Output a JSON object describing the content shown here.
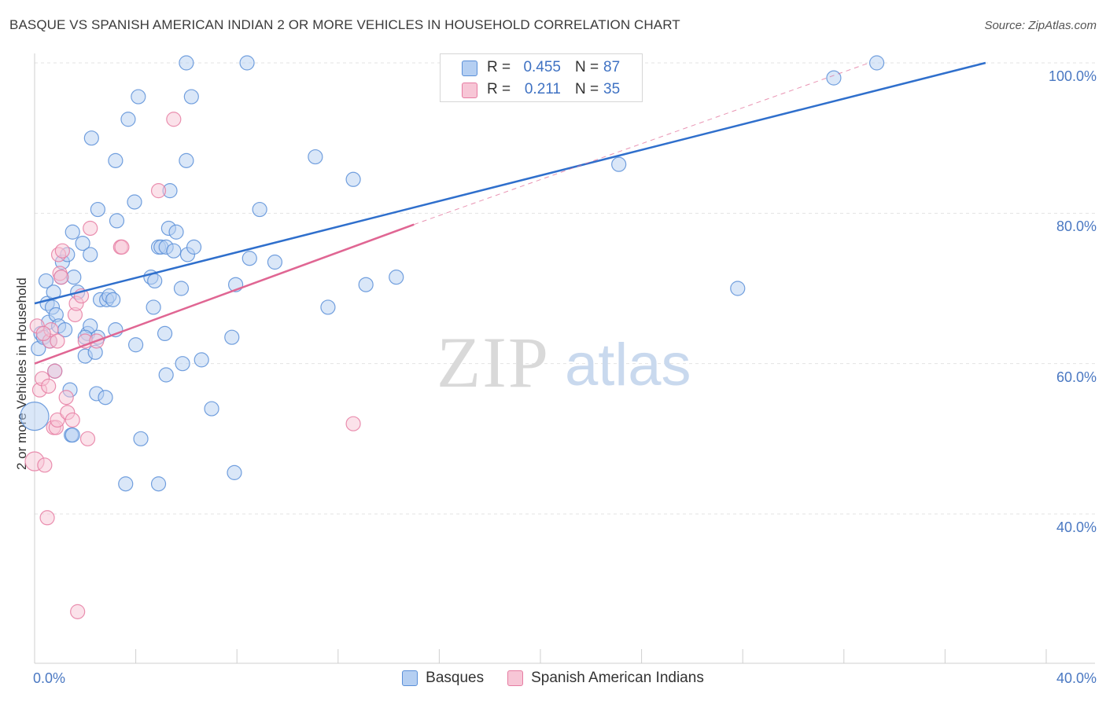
{
  "title": "BASQUE VS SPANISH AMERICAN INDIAN 2 OR MORE VEHICLES IN HOUSEHOLD CORRELATION CHART",
  "source": "Source: ZipAtlas.com",
  "watermark": {
    "zip": "ZIP",
    "atlas": "atlas"
  },
  "stats_legend": [
    {
      "r_label": "R =",
      "r_value": "0.455",
      "n_label": "N =",
      "n_value": "87",
      "color": "#4f86d6",
      "fill": "#aac8f0"
    },
    {
      "r_label": "R =",
      "r_value": "0.211",
      "n_label": "N =",
      "n_value": "35",
      "color": "#e36d97",
      "fill": "#f6bcd0"
    }
  ],
  "colors": {
    "basques_stroke": "#5a8fd8",
    "basques_fill": "#b5cff2",
    "basques_line": "#2f6fcc",
    "spanish_stroke": "#e67ca2",
    "spanish_fill": "#f7c6d6",
    "spanish_line": "#e06693",
    "axis_text": "#4a78c2",
    "grid": "#e3e3e3"
  },
  "chart_data": {
    "type": "scatter",
    "title": "BASQUE VS SPANISH AMERICAN INDIAN 2 OR MORE VEHICLES IN HOUSEHOLD CORRELATION CHART",
    "xlabel": "",
    "ylabel": "2 or more Vehicles in Household",
    "xlim": [
      0,
      40
    ],
    "ylim": [
      20,
      103
    ],
    "x_tick_labels": [
      {
        "value": 0,
        "label": "0.0%"
      },
      {
        "value": 40,
        "label": "40.0%"
      }
    ],
    "y_tick_labels": [
      {
        "value": 100,
        "label": "100.0%"
      },
      {
        "value": 80,
        "label": "80.0%"
      },
      {
        "value": 60,
        "label": "60.0%"
      },
      {
        "value": 40,
        "label": "40.0%"
      }
    ],
    "grid": true,
    "legend_position": "bottom-center",
    "series": [
      {
        "name": "Basques",
        "trend": {
          "x": [
            0,
            37.6
          ],
          "y": [
            68.0,
            100.0
          ]
        },
        "points": [
          [
            0.0,
            53.0,
            18
          ],
          [
            0.15,
            62.0,
            9
          ],
          [
            0.25,
            64.0,
            9
          ],
          [
            0.35,
            63.5,
            9
          ],
          [
            0.45,
            71.0,
            9
          ],
          [
            0.5,
            68.0,
            9
          ],
          [
            0.55,
            65.5,
            9
          ],
          [
            0.7,
            67.5,
            9
          ],
          [
            0.75,
            69.5,
            9
          ],
          [
            0.8,
            59.0,
            9
          ],
          [
            0.85,
            66.5,
            9
          ],
          [
            0.95,
            65.0,
            9
          ],
          [
            1.05,
            71.5,
            9
          ],
          [
            1.1,
            73.5,
            9
          ],
          [
            1.2,
            64.5,
            9
          ],
          [
            1.3,
            74.5,
            9
          ],
          [
            1.4,
            56.5,
            9
          ],
          [
            1.45,
            50.5,
            9
          ],
          [
            1.5,
            77.5,
            9
          ],
          [
            1.55,
            71.5,
            9
          ],
          [
            1.7,
            69.5,
            9
          ],
          [
            1.9,
            76.0,
            9
          ],
          [
            2.0,
            61.0,
            9
          ],
          [
            2.1,
            64.0,
            9
          ],
          [
            2.2,
            65.0,
            9
          ],
          [
            2.2,
            74.5,
            9
          ],
          [
            2.25,
            90.0,
            9
          ],
          [
            2.4,
            61.5,
            9
          ],
          [
            2.45,
            56.0,
            9
          ],
          [
            2.5,
            63.5,
            9
          ],
          [
            2.5,
            80.5,
            9
          ],
          [
            2.6,
            68.5,
            9
          ],
          [
            2.8,
            55.5,
            9
          ],
          [
            2.85,
            68.5,
            9
          ],
          [
            2.95,
            69.0,
            9
          ],
          [
            3.1,
            68.5,
            9
          ],
          [
            3.2,
            87.0,
            9
          ],
          [
            3.2,
            64.5,
            9
          ],
          [
            3.25,
            79.0,
            9
          ],
          [
            3.7,
            92.5,
            9
          ],
          [
            3.95,
            81.5,
            9
          ],
          [
            4.0,
            62.5,
            9
          ],
          [
            4.1,
            95.5,
            9
          ],
          [
            4.2,
            50.0,
            9
          ],
          [
            4.6,
            71.5,
            9
          ],
          [
            4.7,
            67.5,
            9
          ],
          [
            4.75,
            71.0,
            9
          ],
          [
            4.9,
            75.5,
            9
          ],
          [
            5.0,
            75.5,
            9
          ],
          [
            5.15,
            64.0,
            9
          ],
          [
            5.2,
            58.5,
            9
          ],
          [
            5.2,
            75.5,
            9
          ],
          [
            5.3,
            78.0,
            9
          ],
          [
            5.35,
            83.0,
            9
          ],
          [
            5.5,
            75.0,
            9
          ],
          [
            5.6,
            77.5,
            9
          ],
          [
            5.8,
            70.0,
            9
          ],
          [
            5.85,
            60.0,
            9
          ],
          [
            6.0,
            87.0,
            9
          ],
          [
            6.05,
            74.5,
            9
          ],
          [
            6.0,
            100.0,
            9
          ],
          [
            6.2,
            95.5,
            9
          ],
          [
            6.3,
            75.5,
            9
          ],
          [
            6.6,
            60.5,
            9
          ],
          [
            7.0,
            54.0,
            9
          ],
          [
            7.8,
            63.5,
            9
          ],
          [
            7.9,
            45.5,
            9
          ],
          [
            7.95,
            70.5,
            9
          ],
          [
            8.4,
            100.0,
            9
          ],
          [
            8.5,
            74.0,
            9
          ],
          [
            8.9,
            80.5,
            9
          ],
          [
            9.5,
            73.5,
            9
          ],
          [
            4.9,
            44.0,
            9
          ],
          [
            11.1,
            87.5,
            9
          ],
          [
            11.6,
            67.5,
            9
          ],
          [
            12.6,
            84.5,
            9
          ],
          [
            13.1,
            70.5,
            9
          ],
          [
            14.3,
            71.5,
            9
          ],
          [
            20.8,
            100.0,
            9
          ],
          [
            23.1,
            86.5,
            9
          ],
          [
            27.8,
            70.0,
            9
          ],
          [
            31.6,
            98.0,
            9
          ],
          [
            33.3,
            100.0,
            9
          ],
          [
            3.6,
            44.0,
            9
          ],
          [
            1.5,
            50.5,
            9
          ],
          [
            0.6,
            63.0,
            9
          ],
          [
            2.0,
            63.5,
            9
          ]
        ]
      },
      {
        "name": "Spanish American Indians",
        "trend": {
          "x": [
            0,
            15.0
          ],
          "y": [
            60.0,
            78.5
          ]
        },
        "trend_extension": {
          "x": [
            15.0,
            33.0
          ],
          "y": [
            78.5,
            100.0
          ]
        },
        "points": [
          [
            0.0,
            47.0,
            12
          ],
          [
            0.1,
            65.0,
            9
          ],
          [
            0.2,
            56.5,
            9
          ],
          [
            0.3,
            58.0,
            9
          ],
          [
            0.4,
            46.5,
            9
          ],
          [
            0.5,
            39.5,
            9
          ],
          [
            0.55,
            57.0,
            9
          ],
          [
            0.6,
            63.0,
            9
          ],
          [
            0.65,
            64.5,
            9
          ],
          [
            0.75,
            51.5,
            9
          ],
          [
            0.8,
            59.0,
            9
          ],
          [
            0.85,
            51.5,
            9
          ],
          [
            0.9,
            52.5,
            9
          ],
          [
            0.9,
            63.0,
            9
          ],
          [
            0.95,
            74.5,
            9
          ],
          [
            1.0,
            72.0,
            9
          ],
          [
            1.05,
            71.5,
            9
          ],
          [
            1.1,
            75.0,
            9
          ],
          [
            1.25,
            55.5,
            9
          ],
          [
            1.3,
            53.5,
            9
          ],
          [
            1.5,
            52.5,
            9
          ],
          [
            1.6,
            66.5,
            9
          ],
          [
            1.65,
            68.0,
            9
          ],
          [
            1.7,
            27.0,
            9
          ],
          [
            1.85,
            69.0,
            9
          ],
          [
            2.0,
            63.0,
            9
          ],
          [
            2.1,
            50.0,
            9
          ],
          [
            2.2,
            78.0,
            9
          ],
          [
            2.45,
            63.0,
            9
          ],
          [
            3.4,
            75.5,
            9
          ],
          [
            3.45,
            75.5,
            9
          ],
          [
            4.9,
            83.0,
            9
          ],
          [
            5.5,
            92.5,
            9
          ],
          [
            12.6,
            52.0,
            9
          ],
          [
            0.35,
            64.0,
            9
          ]
        ]
      }
    ]
  }
}
